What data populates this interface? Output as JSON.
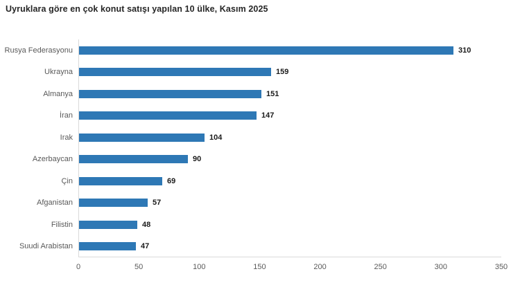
{
  "title": "Uyruklara göre en çok konut satışı yapılan 10 ülke, Kasım 2025",
  "colors": {
    "bar": "#2E78B5",
    "title_text": "#262626",
    "category_text": "#595959",
    "value_text": "#1a1a1a",
    "axis_line": "#d9d9d9",
    "tick_text": "#595959",
    "background": "#ffffff"
  },
  "chart_data": {
    "type": "bar",
    "orientation": "horizontal",
    "title": "Uyruklara göre en çok konut satışı yapılan 10 ülke, Kasım 2025",
    "categories": [
      "Rusya Federasyonu",
      "Ukrayna",
      "Almanya",
      "İran",
      "Irak",
      "Azerbaycan",
      "Çin",
      "Afganistan",
      "Filistin",
      "Suudi Arabistan"
    ],
    "values": [
      310,
      159,
      151,
      147,
      104,
      90,
      69,
      57,
      48,
      47
    ],
    "value_labels_shown": true,
    "xlabel": "",
    "ylabel": "",
    "xlim": [
      0,
      350
    ],
    "x_ticks": [
      0,
      50,
      100,
      150,
      200,
      250,
      300,
      350
    ],
    "grid": false,
    "legend": "none"
  }
}
